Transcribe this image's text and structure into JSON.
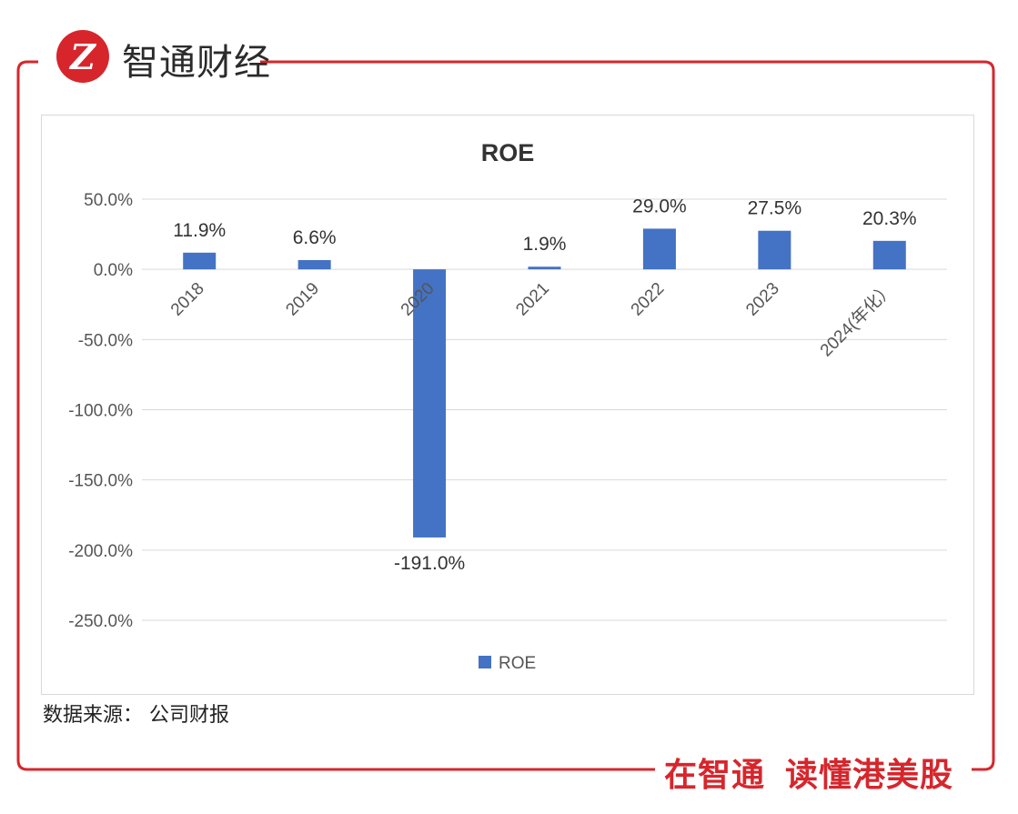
{
  "brand": {
    "logo_letter": "Z",
    "name": "智通财经",
    "accent_color": "#d6262c"
  },
  "chart_data": {
    "type": "bar",
    "title": "ROE",
    "categories": [
      "2018",
      "2019",
      "2020",
      "2021",
      "2022",
      "2023",
      "2024(年化）"
    ],
    "series": [
      {
        "name": "ROE",
        "values": [
          11.9,
          6.6,
          -191.0,
          1.9,
          29.0,
          27.5,
          20.3
        ],
        "labels": [
          "11.9%",
          "6.6%",
          "-191.0%",
          "1.9%",
          "29.0%",
          "27.5%",
          "20.3%"
        ],
        "color": "#4472c4"
      }
    ],
    "y_ticks": [
      "50.0%",
      "0.0%",
      "-50.0%",
      "-100.0%",
      "-150.0%",
      "-200.0%",
      "-250.0%"
    ],
    "ylim": [
      -250,
      50
    ],
    "grid": true,
    "legend": "bottom"
  },
  "source_note": "数据来源：  公司财报",
  "slogan": {
    "part1": "在智通",
    "part2": "读懂港美股"
  }
}
